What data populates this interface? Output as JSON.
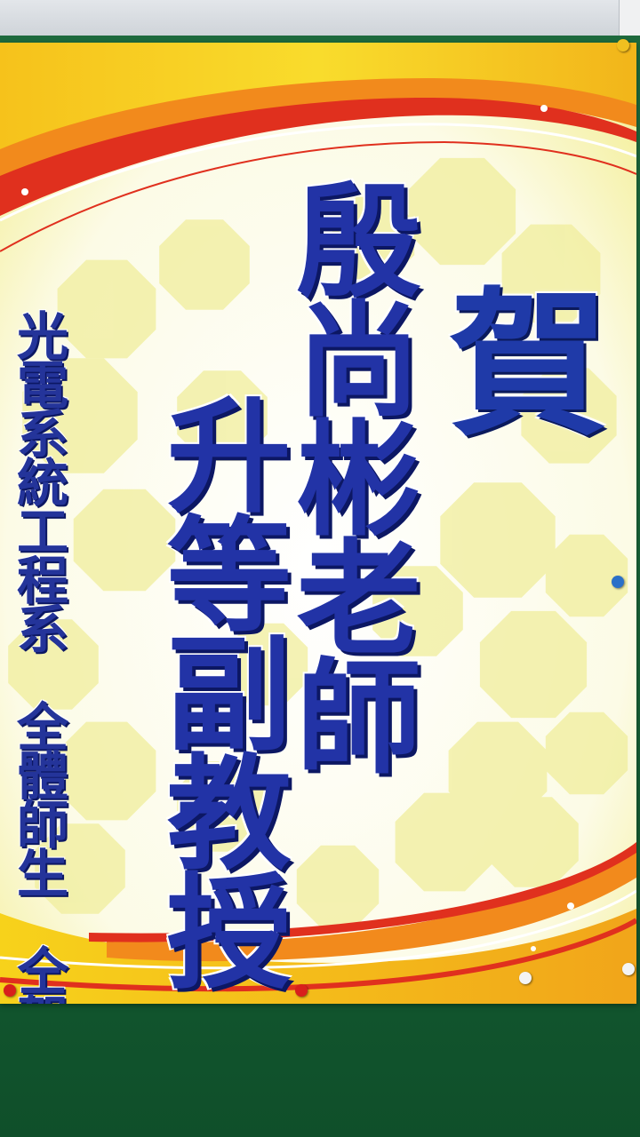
{
  "poster": {
    "heading_char": "賀",
    "name_line": "殷尚彬老師",
    "promotion_line": "升等副教授",
    "department_line": "光電系統工程系　全體師生　仝賀"
  },
  "colors": {
    "poster_background": "#fbfaf0",
    "hexagon_yellow": "#f0ee9c",
    "swoosh_red": "#e0301e",
    "swoosh_orange": "#f28a1c",
    "swoosh_yellow": "#f7d21b",
    "text_blue": "#2233a6",
    "board_green": "#1e6a3d"
  },
  "pins": [
    {
      "name": "pin-top-right",
      "color": "#f0c020"
    },
    {
      "name": "pin-right-blue",
      "color": "#2a70c8"
    },
    {
      "name": "pin-bottom-left-red",
      "color": "#d8201c"
    },
    {
      "name": "pin-bottom-mid-red",
      "color": "#d8201c"
    },
    {
      "name": "pin-bottom-right-white",
      "color": "#f4f4f4"
    },
    {
      "name": "pin-bottom-corner-white",
      "color": "#f4f4f4"
    }
  ]
}
